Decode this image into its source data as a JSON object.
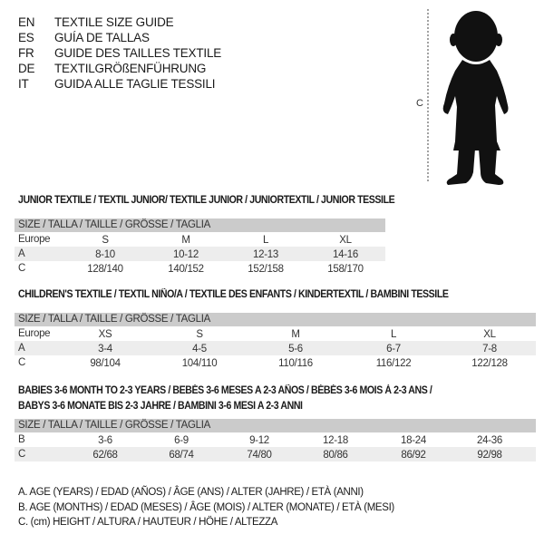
{
  "header": [
    {
      "code": "EN",
      "title": "TEXTILE SIZE GUIDE"
    },
    {
      "code": "ES",
      "title": "GUÍA DE TALLAS"
    },
    {
      "code": "FR",
      "title": "GUIDE DES TAILLES TEXTILE"
    },
    {
      "code": "DE",
      "title": "TEXTILGRÖßENFÜHRUNG"
    },
    {
      "code": "IT",
      "title": "GUIDA ALLE TAGLIE TESSILI"
    }
  ],
  "figure": {
    "measure_label": "C",
    "icon": "child-silhouette-icon"
  },
  "sections": [
    {
      "title_lines": [
        "JUNIOR TEXTILE / TEXTIL JUNIOR/ TEXTILE JUNIOR / JUNIORTEXTIL / JUNIOR TESSILE"
      ],
      "header": "SIZE / TALLA / TAILLE / GRÖSSE / TAGLIA",
      "rows": [
        {
          "label": "Europe",
          "values": [
            "S",
            "M",
            "L",
            "XL"
          ]
        },
        {
          "label": "A",
          "values": [
            "8-10",
            "10-12",
            "12-13",
            "14-16"
          ]
        },
        {
          "label": "C",
          "values": [
            "128/140",
            "140/152",
            "152/158",
            "158/170"
          ]
        }
      ]
    },
    {
      "title_lines": [
        "CHILDREN'S TEXTILE / TEXTIL NIÑO/A / TEXTILE DES ENFANTS / KINDERTEXTIL / BAMBINI TESSILE"
      ],
      "header": "SIZE / TALLA / TAILLE / GRÖSSE / TAGLIA",
      "rows": [
        {
          "label": "Europe",
          "values": [
            "XS",
            "S",
            "M",
            "L",
            "XL"
          ]
        },
        {
          "label": "A",
          "values": [
            "3-4",
            "4-5",
            "5-6",
            "6-7",
            "7-8"
          ]
        },
        {
          "label": "C",
          "values": [
            "98/104",
            "104/110",
            "110/116",
            "116/122",
            "122/128"
          ]
        }
      ]
    },
    {
      "title_lines": [
        "BABIES 3-6 MONTH TO 2-3 YEARS / BEBÉS 3-6 MESES A 2-3 AÑOS / BÉBÉS 3-6 MOIS À 2-3 ANS /",
        "BABYS 3-6 MONATE BIS 2-3 JAHRE / BAMBINI 3-6 MESI A 2-3 ANNI"
      ],
      "header": "SIZE / TALLA / TAILLE / GRÖSSE / TAGLIA",
      "rows": [
        {
          "label": "B",
          "values": [
            "3-6",
            "6-9",
            "9-12",
            "12-18",
            "18-24",
            "24-36"
          ]
        },
        {
          "label": "C",
          "values": [
            "62/68",
            "68/74",
            "74/80",
            "80/86",
            "86/92",
            "92/98"
          ]
        }
      ]
    }
  ],
  "legend": [
    "A. AGE (YEARS) / EDAD (AÑOS) / ÂGE (ANS) / ALTER (JAHRE) / ETÀ (ANNI)",
    "B. AGE (MONTHS) / EDAD (MESES) / ÂGE (MOIS) / ALTER (MONATE) / ETÀ (MESI)",
    "C. (cm) HEIGHT / ALTURA / HAUTEUR / HÖHE / ALTEZZA"
  ]
}
